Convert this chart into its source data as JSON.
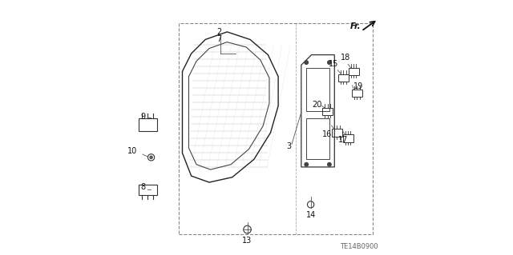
{
  "background_color": "#ffffff",
  "diagram_code": "TE14B0900",
  "line_color": "#555555",
  "text_color": "#111111",
  "part_line_color": "#333333"
}
